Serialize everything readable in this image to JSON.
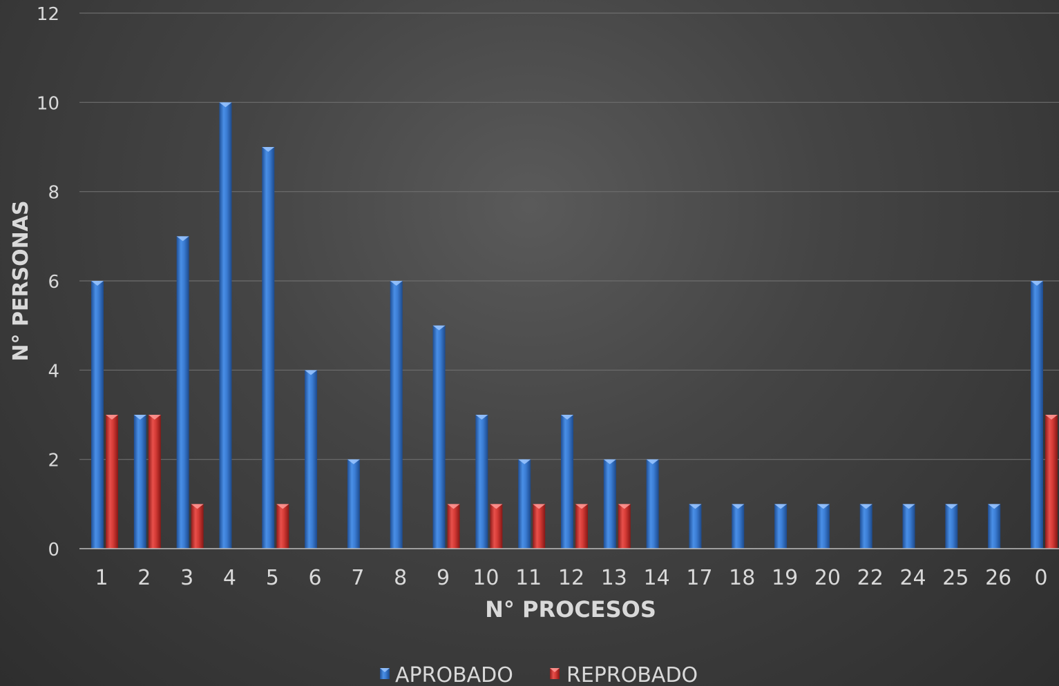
{
  "chart_data": {
    "type": "bar",
    "title": "",
    "xlabel": "N° PROCESOS",
    "ylabel": "N° PERSONAS",
    "ylim": [
      0,
      12
    ],
    "yticks": [
      0,
      2,
      4,
      6,
      8,
      10,
      12
    ],
    "grid": true,
    "legend_position": "bottom",
    "categories": [
      "1",
      "2",
      "3",
      "4",
      "5",
      "6",
      "7",
      "8",
      "9",
      "10",
      "11",
      "12",
      "13",
      "14",
      "17",
      "18",
      "19",
      "20",
      "22",
      "24",
      "25",
      "26",
      "0"
    ],
    "series": [
      {
        "name": "APROBADO",
        "color": "#3a7fd5",
        "values": [
          6,
          3,
          7,
          10,
          9,
          4,
          2,
          6,
          5,
          3,
          2,
          3,
          2,
          2,
          1,
          1,
          1,
          1,
          1,
          1,
          1,
          1,
          6
        ]
      },
      {
        "name": "REPROBADO",
        "color": "#d93a36",
        "values": [
          3,
          3,
          1,
          0,
          1,
          0,
          0,
          0,
          1,
          1,
          1,
          1,
          1,
          0,
          0,
          0,
          0,
          0,
          0,
          0,
          0,
          0,
          3
        ]
      }
    ]
  }
}
